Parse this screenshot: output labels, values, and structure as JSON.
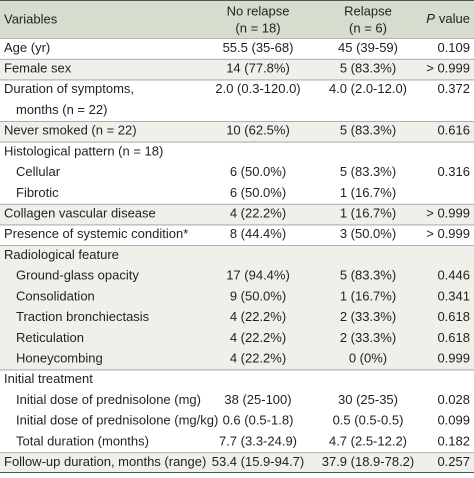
{
  "header": {
    "variables": "Variables",
    "no_relapse": [
      "No relapse",
      "(n = 18)"
    ],
    "relapse": [
      "Relapse",
      "(n = 6)"
    ],
    "p_value_italic": "P",
    "p_value_rest": "value"
  },
  "groups": [
    {
      "rows": [
        {
          "label": [
            "Age (yr)"
          ],
          "cells": [
            "55.5 (35-68)",
            "45 (39-59)",
            "0.109"
          ]
        }
      ]
    },
    {
      "rows": [
        {
          "label": [
            "Female sex"
          ],
          "cells": [
            "14 (77.8%)",
            "5 (83.3%)",
            "> 0.999"
          ]
        }
      ]
    },
    {
      "rows": [
        {
          "label": [
            "Duration of symptoms,",
            "months (n = 22)"
          ],
          "cells": [
            "2.0 (0.3-120.0)",
            "4.0 (2.0-12.0)",
            "0.372"
          ]
        }
      ]
    },
    {
      "rows": [
        {
          "label": [
            "Never smoked (n = 22)"
          ],
          "cells": [
            "10 (62.5%)",
            "5 (83.3%)",
            "0.616"
          ]
        }
      ]
    },
    {
      "rows": [
        {
          "label": [
            "Histological pattern (n = 18)"
          ],
          "cells": null
        },
        {
          "label": [
            "Cellular"
          ],
          "cells": [
            "6 (50.0%)",
            "5 (83.3%)",
            "0.316"
          ]
        },
        {
          "label": [
            "Fibrotic"
          ],
          "cells": [
            "6 (50.0%)",
            "1 (16.7%)",
            null
          ]
        }
      ]
    },
    {
      "rows": [
        {
          "label": [
            "Collagen vascular disease"
          ],
          "cells": [
            "4 (22.2%)",
            "1 (16.7%)",
            "> 0.999"
          ]
        }
      ]
    },
    {
      "rows": [
        {
          "label": [
            "Presence of systemic condition*"
          ],
          "cells": [
            "8 (44.4%)",
            "3 (50.0%)",
            "> 0.999"
          ]
        }
      ]
    },
    {
      "rows": [
        {
          "label": [
            "Radiological feature"
          ],
          "cells": null
        },
        {
          "label": [
            "Ground-glass opacity"
          ],
          "cells": [
            "17 (94.4%)",
            "5 (83.3%)",
            "0.446"
          ]
        },
        {
          "label": [
            "Consolidation"
          ],
          "cells": [
            "9 (50.0%)",
            "1 (16.7%)",
            "0.341"
          ]
        },
        {
          "label": [
            "Traction bronchiectasis"
          ],
          "cells": [
            "4 (22.2%)",
            "2 (33.3%)",
            "0.618"
          ]
        },
        {
          "label": [
            "Reticulation"
          ],
          "cells": [
            "4 (22.2%)",
            "2 (33.3%)",
            "0.618"
          ]
        },
        {
          "label": [
            "Honeycombing"
          ],
          "cells": [
            "4 (22.2%)",
            "0 (0%)",
            "0.999"
          ]
        }
      ]
    },
    {
      "rows": [
        {
          "label": [
            "Initial treatment"
          ],
          "cells": null
        },
        {
          "label": [
            "Initial dose of prednisolone (mg)"
          ],
          "cells": [
            "38 (25-100)",
            "30 (25-35)",
            "0.028"
          ]
        },
        {
          "label": [
            "Initial dose of prednisolone (mg/kg)"
          ],
          "cells": [
            "0.6 (0.5-1.8)",
            "0.5 (0.5-0.5)",
            "0.099"
          ]
        },
        {
          "label": [
            "Total duration (months)"
          ],
          "cells": [
            "7.7 (3.3-24.9)",
            "4.7 (2.5-12.2)",
            "0.182"
          ]
        }
      ]
    },
    {
      "rows": [
        {
          "label": [
            "Follow-up duration, months (range)"
          ],
          "cells": [
            "53.4 (15.9-94.7)",
            "37.9 (18.9-78.2)",
            "0.257"
          ]
        }
      ]
    }
  ]
}
